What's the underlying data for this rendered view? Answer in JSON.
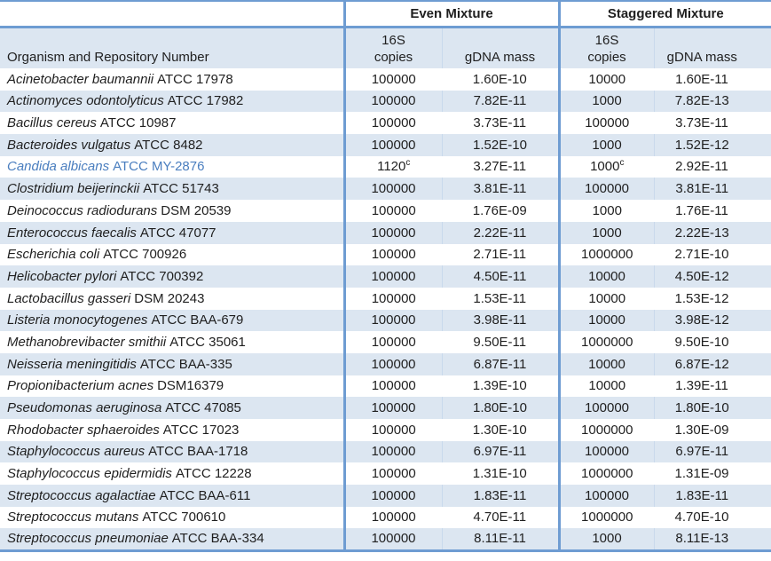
{
  "colors": {
    "stripe": "#dce6f1",
    "border": "#6e9cd2",
    "highlight_text": "#4a7ebf",
    "text": "#1f1f1f"
  },
  "table": {
    "header": {
      "organism_col": "Organism and Repository Number",
      "even_label": "Even Mixture",
      "staggered_label": "Staggered Mixture",
      "copies_line1": "16S",
      "copies_line2": "copies",
      "gdna_label": "gDNA mass"
    },
    "rows": [
      {
        "organism": "Acinetobacter baumannii",
        "repo": "ATCC 17978",
        "even_copies": "100000",
        "even_gdna": "1.60E-10",
        "stag_copies": "10000",
        "stag_gdna": "1.60E-11"
      },
      {
        "organism": "Actinomyces odontolyticus",
        "repo": "ATCC 17982",
        "even_copies": "100000",
        "even_gdna": "7.82E-11",
        "stag_copies": "1000",
        "stag_gdna": "7.82E-13"
      },
      {
        "organism": "Bacillus cereus",
        "repo": "ATCC 10987",
        "even_copies": "100000",
        "even_gdna": "3.73E-11",
        "stag_copies": "100000",
        "stag_gdna": "3.73E-11"
      },
      {
        "organism": "Bacteroides vulgatus",
        "repo": "ATCC 8482",
        "even_copies": "100000",
        "even_gdna": "1.52E-10",
        "stag_copies": "1000",
        "stag_gdna": "1.52E-12"
      },
      {
        "organism": "Candida albicans",
        "repo": "ATCC MY-2876",
        "even_copies": "1120",
        "even_copies_sup": "c",
        "even_gdna": "3.27E-11",
        "stag_copies": "1000",
        "stag_copies_sup": "c",
        "stag_gdna": "2.92E-11",
        "highlight": true
      },
      {
        "organism": "Clostridium beijerinckii",
        "repo": "ATCC 51743",
        "even_copies": "100000",
        "even_gdna": "3.81E-11",
        "stag_copies": "100000",
        "stag_gdna": "3.81E-11"
      },
      {
        "organism": "Deinococcus radiodurans",
        "repo": "DSM 20539",
        "even_copies": "100000",
        "even_gdna": "1.76E-09",
        "stag_copies": "1000",
        "stag_gdna": "1.76E-11"
      },
      {
        "organism": "Enterococcus faecalis",
        "repo": "ATCC 47077",
        "even_copies": "100000",
        "even_gdna": "2.22E-11",
        "stag_copies": "1000",
        "stag_gdna": "2.22E-13"
      },
      {
        "organism": "Escherichia coli",
        "repo": "ATCC 700926",
        "even_copies": "100000",
        "even_gdna": "2.71E-11",
        "stag_copies": "1000000",
        "stag_gdna": "2.71E-10"
      },
      {
        "organism": "Helicobacter pylori",
        "repo": "ATCC 700392",
        "even_copies": "100000",
        "even_gdna": "4.50E-11",
        "stag_copies": "10000",
        "stag_gdna": "4.50E-12"
      },
      {
        "organism": "Lactobacillus gasseri",
        "repo": "DSM 20243",
        "even_copies": "100000",
        "even_gdna": "1.53E-11",
        "stag_copies": "10000",
        "stag_gdna": "1.53E-12"
      },
      {
        "organism": "Listeria monocytogenes",
        "repo": "ATCC BAA-679",
        "even_copies": "100000",
        "even_gdna": "3.98E-11",
        "stag_copies": "10000",
        "stag_gdna": "3.98E-12"
      },
      {
        "organism": "Methanobrevibacter smithii",
        "repo": "ATCC 35061",
        "even_copies": "100000",
        "even_gdna": "9.50E-11",
        "stag_copies": "1000000",
        "stag_gdna": "9.50E-10"
      },
      {
        "organism": "Neisseria meningitidis",
        "repo": "ATCC BAA-335",
        "even_copies": "100000",
        "even_gdna": "6.87E-11",
        "stag_copies": "10000",
        "stag_gdna": "6.87E-12"
      },
      {
        "organism": "Propionibacterium acnes",
        "repo": "DSM16379",
        "even_copies": "100000",
        "even_gdna": "1.39E-10",
        "stag_copies": "10000",
        "stag_gdna": "1.39E-11"
      },
      {
        "organism": "Pseudomonas aeruginosa",
        "repo": "ATCC 47085",
        "even_copies": "100000",
        "even_gdna": "1.80E-10",
        "stag_copies": "100000",
        "stag_gdna": "1.80E-10"
      },
      {
        "organism": "Rhodobacter sphaeroides",
        "repo": "ATCC 17023",
        "even_copies": "100000",
        "even_gdna": "1.30E-10",
        "stag_copies": "1000000",
        "stag_gdna": "1.30E-09"
      },
      {
        "organism": "Staphylococcus aureus",
        "repo": "ATCC BAA-1718",
        "even_copies": "100000",
        "even_gdna": "6.97E-11",
        "stag_copies": "100000",
        "stag_gdna": "6.97E-11"
      },
      {
        "organism": "Staphylococcus epidermidis",
        "repo": "ATCC 12228",
        "even_copies": "100000",
        "even_gdna": "1.31E-10",
        "stag_copies": "1000000",
        "stag_gdna": "1.31E-09"
      },
      {
        "organism": "Streptococcus agalactiae",
        "repo": "ATCC BAA-611",
        "even_copies": "100000",
        "even_gdna": "1.83E-11",
        "stag_copies": "100000",
        "stag_gdna": "1.83E-11"
      },
      {
        "organism": "Streptococcus mutans",
        "repo": "ATCC 700610",
        "even_copies": "100000",
        "even_gdna": "4.70E-11",
        "stag_copies": "1000000",
        "stag_gdna": "4.70E-10"
      },
      {
        "organism": "Streptococcus pneumoniae",
        "repo": "ATCC BAA-334",
        "even_copies": "100000",
        "even_gdna": "8.11E-11",
        "stag_copies": "1000",
        "stag_gdna": "8.11E-13"
      }
    ]
  }
}
